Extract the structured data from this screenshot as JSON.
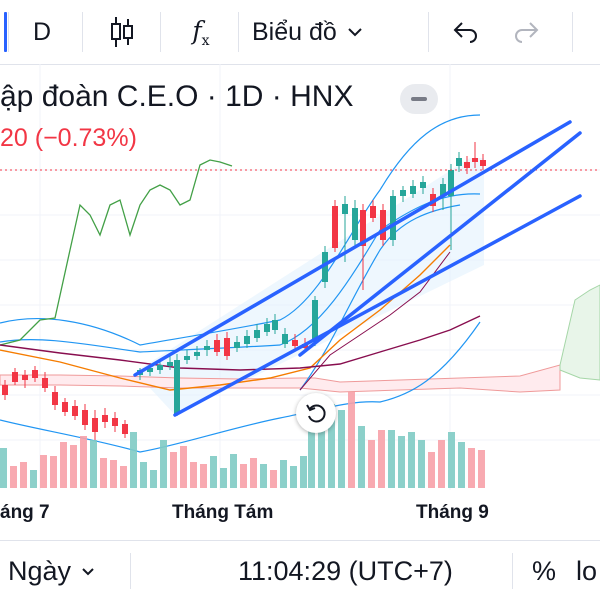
{
  "toolbar": {
    "interval": "D",
    "fx": "f",
    "fx_sub": "x",
    "chart_menu": "Biểu đồ",
    "chevron": "⌄"
  },
  "legend": {
    "title": "ập đoàn C.E.O · 1D · HNX",
    "change": "20 (−0.73%)"
  },
  "xaxis": {
    "labels": [
      "áng 7",
      "Tháng Tám",
      "Tháng 9"
    ]
  },
  "bottom": {
    "range": "Ngày",
    "clock": "11:04:29 (UTC+7)",
    "percent": "%",
    "log": "lo"
  },
  "colors": {
    "up": "#26a69a",
    "down": "#f23645",
    "trendline": "#2962ff",
    "bands": "#2196f3",
    "lagging": "#43a047",
    "ma_orange": "#f57c00",
    "ma_maroon": "#880e4f",
    "cloud_green": "#a5d6a7",
    "cloud_red": "#ef9a9a"
  }
}
